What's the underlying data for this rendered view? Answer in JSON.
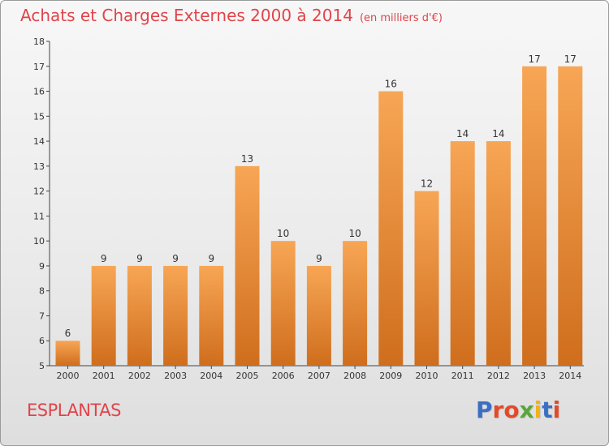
{
  "header": {
    "title": "Achats et Charges Externes 2000 à 2014",
    "subtitle": "(en milliers d'€)"
  },
  "footer": {
    "place": "ESPLANTAS",
    "logo": "Proxiti"
  },
  "colors": {
    "title": "#e0444a",
    "bar_top": "#f7a655",
    "bar_bottom": "#cf6e1d",
    "logo_letters": [
      "#3a6fc4",
      "#e34a2a",
      "#e34a2a",
      "#5aa63a",
      "#f0b21a",
      "#3a6fc4",
      "#e34a2a"
    ]
  },
  "chart_data": {
    "type": "bar",
    "title": "Achats et Charges Externes 2000 à 2014",
    "subtitle": "(en milliers d'€)",
    "categories": [
      "2000",
      "2001",
      "2002",
      "2003",
      "2004",
      "2005",
      "2006",
      "2007",
      "2008",
      "2009",
      "2010",
      "2011",
      "2012",
      "2013",
      "2014"
    ],
    "values": [
      6,
      9,
      9,
      9,
      9,
      13,
      10,
      9,
      10,
      16,
      12,
      14,
      14,
      17,
      17
    ],
    "data_labels": [
      "6",
      "9",
      "9",
      "9",
      "9",
      "13",
      "10",
      "9",
      "10",
      "16",
      "12",
      "14",
      "14",
      "17",
      "17"
    ],
    "yticks": [
      "5",
      "6",
      "7",
      "8",
      "9",
      "10",
      "11",
      "12",
      "13",
      "14",
      "15",
      "16",
      "17",
      "18"
    ],
    "ylim": [
      5,
      18
    ],
    "grid": false,
    "legend": "none"
  }
}
